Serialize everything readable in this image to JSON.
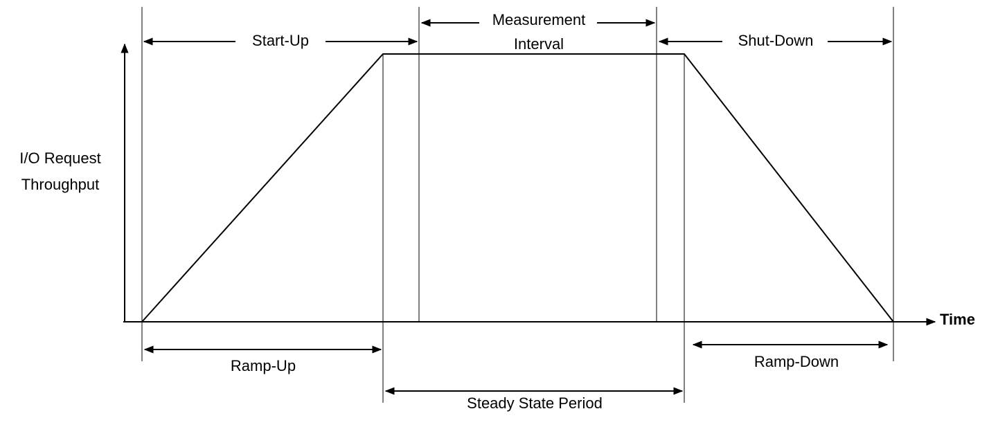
{
  "y_axis_label": [
    "I/O Request",
    "Throughput"
  ],
  "x_axis_label": "Time",
  "phases": {
    "start_up": "Start-Up",
    "measurement_interval": [
      "Measurement",
      "Interval"
    ],
    "shut_down": "Shut-Down",
    "ramp_up": "Ramp-Up",
    "steady_state": "Steady State Period",
    "ramp_down": "Ramp-Down"
  }
}
